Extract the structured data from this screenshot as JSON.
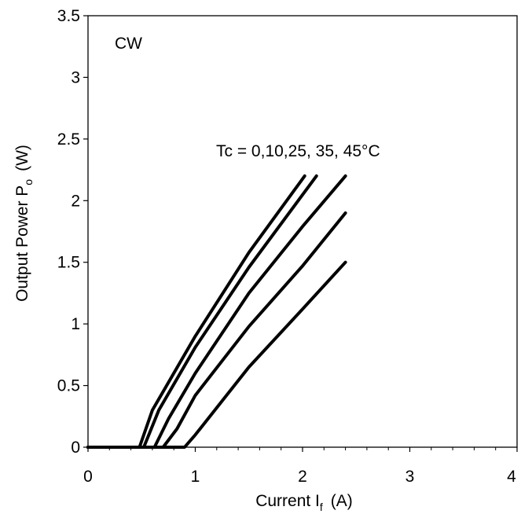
{
  "chart_data": {
    "type": "line",
    "title": "",
    "xlabel": "Current I",
    "xlabel_sub": "f",
    "xlabel_unit": "(A)",
    "ylabel": "Output Power P",
    "ylabel_sub": "o",
    "ylabel_unit": "(W)",
    "xlim": [
      0,
      4
    ],
    "ylim": [
      0,
      3.5
    ],
    "x_ticks": [
      0,
      1,
      2,
      3,
      4
    ],
    "y_ticks": [
      0,
      0.5,
      1,
      1.5,
      2,
      2.5,
      3,
      3.5
    ],
    "x_tick_labels": [
      "0",
      "1",
      "2",
      "3",
      "4"
    ],
    "y_tick_labels": [
      "0",
      "0.5",
      "1",
      "1.5",
      "2",
      "2.5",
      "3",
      "3.5"
    ],
    "grid": false,
    "line_color": "#000000",
    "annotations": [
      {
        "text": "CW"
      },
      {
        "text": "Tc = 0,10,25, 35, 45°C"
      }
    ],
    "series": [
      {
        "x": [
          0,
          0.48,
          0.6,
          1.0,
          1.5,
          2.02
        ],
        "y": [
          0,
          0,
          0.3,
          0.9,
          1.58,
          2.2
        ]
      },
      {
        "x": [
          0,
          0.52,
          0.66,
          1.0,
          1.5,
          2.13
        ],
        "y": [
          0,
          0,
          0.3,
          0.81,
          1.46,
          2.2
        ]
      },
      {
        "x": [
          0,
          0.62,
          0.75,
          1.0,
          1.5,
          2.0,
          2.4
        ],
        "y": [
          0,
          0,
          0.23,
          0.6,
          1.25,
          1.79,
          2.2
        ]
      },
      {
        "x": [
          0,
          0.7,
          0.83,
          1.0,
          1.5,
          2.0,
          2.4
        ],
        "y": [
          0,
          0,
          0.15,
          0.42,
          0.98,
          1.47,
          1.9
        ]
      },
      {
        "x": [
          0,
          0.9,
          1.0,
          1.5,
          2.0,
          2.4
        ],
        "y": [
          0,
          0,
          0.1,
          0.65,
          1.12,
          1.5
        ]
      }
    ]
  }
}
